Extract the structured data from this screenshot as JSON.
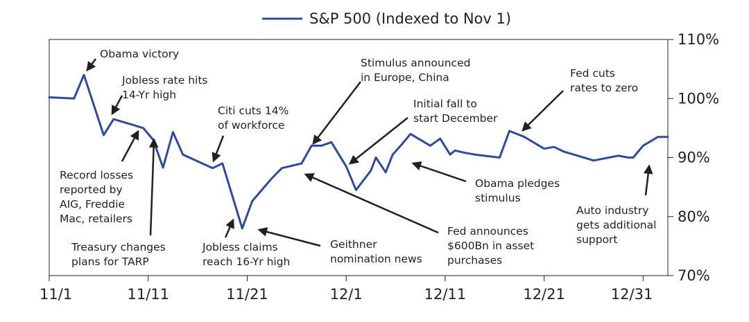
{
  "chart_data": {
    "type": "line",
    "title": "",
    "xlabel": "",
    "ylabel": "",
    "legend": {
      "placement": "top-center",
      "label": "S&P 500 (Indexed to Nov 1)"
    },
    "ylim": [
      70,
      110
    ],
    "y_ticks": [
      "110%",
      "100%",
      "90%",
      "80%",
      "70%"
    ],
    "x_ticks": [
      "11/1",
      "11/11",
      "11/21",
      "12/1",
      "12/11",
      "12/21",
      "12/31"
    ],
    "grid": false,
    "colors": {
      "line": "#2e4a9b",
      "frame": "#231f20"
    },
    "series": [
      {
        "name": "S&P 500 (Indexed to Nov 1)",
        "x": [
          0,
          2.5,
          3.5,
          5.5,
          6.5,
          8.5,
          9.5,
          10.5,
          11.5,
          12.5,
          13.5,
          16.5,
          17.5,
          19.5,
          20.5,
          22.5,
          23.5,
          25.5,
          26.5,
          27.5,
          28.5,
          30.0,
          31.0,
          32.5,
          33.0,
          34.0,
          34.7,
          35.5,
          36.5,
          38.5,
          39.5,
          40.5,
          41.0,
          42.0,
          43.0,
          45.5,
          46.5,
          48.0,
          50.0,
          51.0,
          52.0,
          53.0,
          55.0,
          57.5,
          58.5,
          59.0,
          60.0,
          61.5,
          62.5
        ],
        "y": [
          100.2,
          100.0,
          104.0,
          93.8,
          96.5,
          95.5,
          95.0,
          93.0,
          88.3,
          94.3,
          90.5,
          88.2,
          89.0,
          78.0,
          82.6,
          86.5,
          88.2,
          89.0,
          92.0,
          92.0,
          92.6,
          88.5,
          84.5,
          87.8,
          90.0,
          87.5,
          90.5,
          92.0,
          94.0,
          92.0,
          93.2,
          90.5,
          91.2,
          90.8,
          90.5,
          90.0,
          94.5,
          93.5,
          91.5,
          91.8,
          91.0,
          90.5,
          89.5,
          90.3,
          90.0,
          90.0,
          92.0,
          93.5,
          93.5
        ]
      }
    ],
    "annotations": [
      "Obama victory",
      "Jobless rate hits 14-Yr high",
      "Record losses reported by AIG, Freddie Mac, retailers",
      "Treasury changes plans for TARP",
      "Citi cuts 14% of workforce",
      "Jobless claims reach 16-Yr high",
      "Geithner nomination news",
      "Stimulus announced in Europe, China",
      "Fed announces $600Bn in asset purchases",
      "Initial fall to start December",
      "Obama pledges stimulus",
      "Fed cuts rates to zero",
      "Auto industry gets additional support"
    ]
  },
  "annotations": {
    "obama_victory": [
      "Obama victory"
    ],
    "jobless_rate": [
      "Jobless rate hits",
      "14-Yr high"
    ],
    "record_losses": [
      "Record losses",
      "reported by",
      "AIG, Freddie",
      "Mac, retailers"
    ],
    "treasury": [
      "Treasury changes",
      "plans for TARP"
    ],
    "citi": [
      "Citi cuts 14%",
      "of workforce"
    ],
    "jobless_claims": [
      "Jobless claims",
      "reach 16-Yr high"
    ],
    "geithner": [
      "Geithner",
      "nomination news"
    ],
    "stimulus_europe": [
      "Stimulus announced",
      "in Europe, China"
    ],
    "fed_600bn": [
      "Fed announces",
      "$600Bn in asset",
      "purchases"
    ],
    "initial_fall": [
      "Initial fall to",
      "start December"
    ],
    "obama_pledges": [
      "Obama pledges",
      "stimulus"
    ],
    "fed_cuts": [
      "Fed cuts",
      "rates to zero"
    ],
    "auto_industry": [
      "Auto industry",
      "gets additional",
      "support"
    ]
  }
}
